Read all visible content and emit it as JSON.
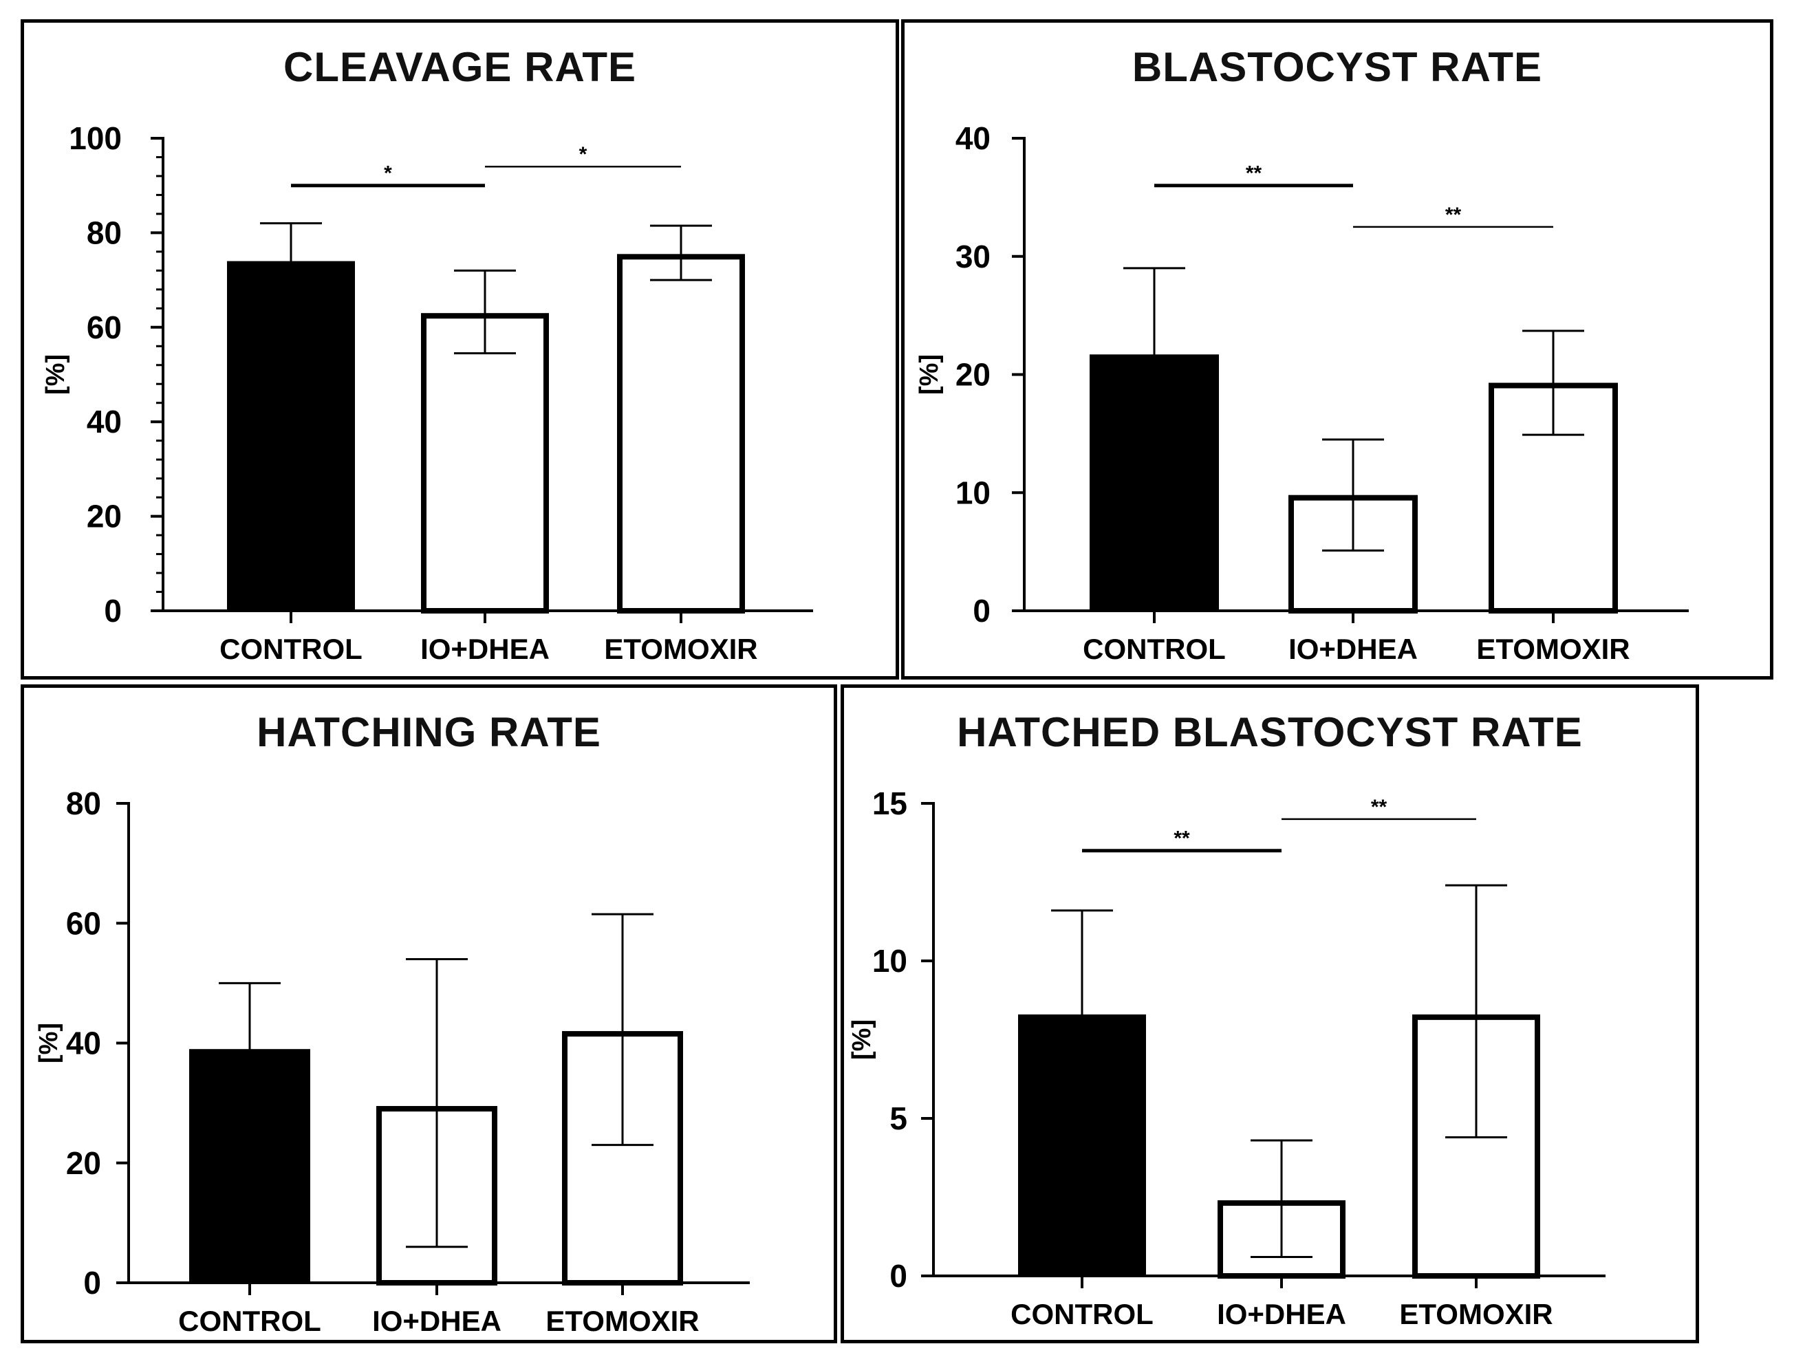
{
  "chart_data": [
    {
      "type": "bar",
      "title": "CLEAVAGE RATE",
      "ylabel": "[%]",
      "xlabel": "",
      "categories": [
        "CONTROL",
        "IO+DHEA",
        "ETOMOXIR"
      ],
      "values": [
        74,
        63,
        75.5
      ],
      "error_upper": [
        82,
        72,
        81.5
      ],
      "error_lower": [
        66,
        54.5,
        70
      ],
      "bar_fill": [
        "#000000",
        "#ffffff",
        "#ffffff"
      ],
      "ylim": [
        0,
        100
      ],
      "yticks": [
        "0",
        "20",
        "40",
        "60",
        "80",
        "100"
      ],
      "ytick_values": [
        0,
        20,
        40,
        60,
        80,
        100
      ],
      "minor_ticks_per_major": 4,
      "significance": [
        {
          "from": 0,
          "to": 1,
          "y": 90,
          "label": "*",
          "bold": true
        },
        {
          "from": 1,
          "to": 2,
          "y": 94,
          "label": "*",
          "bold": false
        }
      ]
    },
    {
      "type": "bar",
      "title": "BLASTOCYST RATE",
      "ylabel": "[%]",
      "xlabel": "",
      "categories": [
        "CONTROL",
        "IO+DHEA",
        "ETOMOXIR"
      ],
      "values": [
        21.7,
        9.8,
        19.3
      ],
      "error_upper": [
        29,
        14.5,
        23.7
      ],
      "error_lower": [
        14.4,
        5.1,
        14.9
      ],
      "bar_fill": [
        "#000000",
        "#ffffff",
        "#ffffff"
      ],
      "ylim": [
        0,
        40
      ],
      "yticks": [
        "0",
        "10",
        "20",
        "30",
        "40"
      ],
      "ytick_values": [
        0,
        10,
        20,
        30,
        40
      ],
      "minor_ticks_per_major": 0,
      "significance": [
        {
          "from": 0,
          "to": 1,
          "y": 36,
          "label": "**",
          "bold": true
        },
        {
          "from": 1,
          "to": 2,
          "y": 32.5,
          "label": "**",
          "bold": false
        }
      ]
    },
    {
      "type": "bar",
      "title": "HATCHING RATE",
      "ylabel": "[%]",
      "xlabel": "",
      "categories": [
        "CONTROL",
        "IO+DHEA",
        "ETOMOXIR"
      ],
      "values": [
        39,
        29.5,
        42
      ],
      "error_upper": [
        50,
        54,
        61.5
      ],
      "error_lower": [
        28.5,
        6,
        23
      ],
      "bar_fill": [
        "#000000",
        "#ffffff",
        "#ffffff"
      ],
      "ylim": [
        0,
        80
      ],
      "yticks": [
        "0",
        "20",
        "40",
        "60",
        "80"
      ],
      "ytick_values": [
        0,
        20,
        40,
        60,
        80
      ],
      "minor_ticks_per_major": 0,
      "significance": []
    },
    {
      "type": "bar",
      "title": "HATCHED BLASTOCYST RATE",
      "ylabel": "[%]",
      "xlabel": "",
      "categories": [
        "CONTROL",
        "IO+DHEA",
        "ETOMOXIR"
      ],
      "values": [
        8.3,
        2.4,
        8.3
      ],
      "error_upper": [
        11.6,
        4.3,
        12.4
      ],
      "error_lower": [
        5,
        0.6,
        4.4
      ],
      "bar_fill": [
        "#000000",
        "#ffffff",
        "#ffffff"
      ],
      "ylim": [
        0,
        15
      ],
      "yticks": [
        "0",
        "5",
        "10",
        "15"
      ],
      "ytick_values": [
        0,
        5,
        10,
        15
      ],
      "minor_ticks_per_major": 0,
      "significance": [
        {
          "from": 0,
          "to": 1,
          "y": 13.5,
          "label": "**",
          "bold": true
        },
        {
          "from": 1,
          "to": 2,
          "y": 14.5,
          "label": "**",
          "bold": false
        }
      ]
    }
  ]
}
